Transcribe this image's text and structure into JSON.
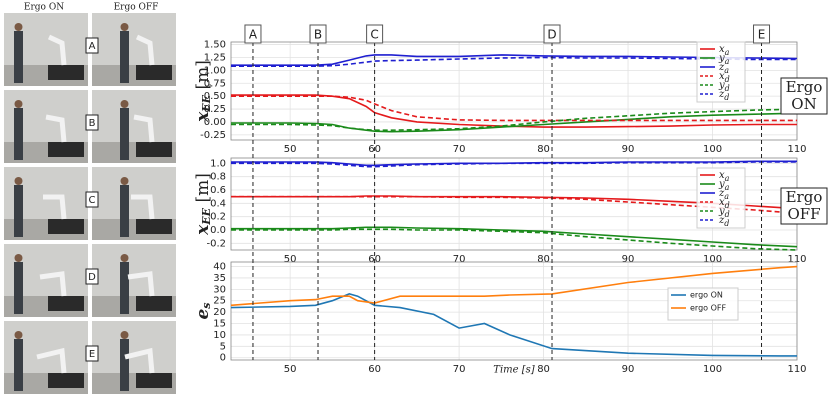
{
  "photos": {
    "headers": [
      "Ergo ON",
      "Ergo OFF"
    ]
  },
  "events": {
    "labels": [
      "A",
      "B",
      "C",
      "D",
      "E"
    ],
    "x": [
      45.6,
      53.3,
      60,
      81,
      105.8
    ]
  },
  "chart_data": [
    {
      "type": "line",
      "ylabel": "xEE [m]",
      "annotation": [
        "Ergo",
        "ON"
      ],
      "x": [
        43,
        50,
        53,
        55,
        57,
        59,
        60,
        62,
        65,
        70,
        75,
        80,
        85,
        90,
        95,
        100,
        105,
        110
      ],
      "xlim": [
        43,
        110
      ],
      "xticks": [
        50,
        60,
        70,
        80,
        90,
        100,
        110
      ],
      "ylim": [
        -0.35,
        1.55
      ],
      "yticks": [
        {
          "value": -0.25,
          "label": "-0.25"
        },
        {
          "value": 0,
          "label": "0.00"
        },
        {
          "value": 0.25,
          "label": "0.25"
        },
        {
          "value": 0.5,
          "label": "0.50"
        },
        {
          "value": 0.75,
          "label": "0.75"
        },
        {
          "value": 1,
          "label": "1.00"
        },
        {
          "value": 1.25,
          "label": "1.25"
        },
        {
          "value": 1.5,
          "label": "1.50"
        }
      ],
      "grid": true,
      "series": [
        {
          "name": "xa",
          "color": "#e41a1c",
          "dash": false,
          "values": [
            0.52,
            0.52,
            0.52,
            0.5,
            0.45,
            0.3,
            0.18,
            0.08,
            0,
            -0.05,
            -0.08,
            -0.1,
            -0.1,
            -0.09,
            -0.08,
            -0.06,
            -0.05,
            -0.05
          ]
        },
        {
          "name": "ya",
          "color": "#1a8a1a",
          "dash": false,
          "values": [
            -0.02,
            -0.02,
            -0.03,
            -0.05,
            -0.12,
            -0.16,
            -0.18,
            -0.19,
            -0.18,
            -0.15,
            -0.1,
            -0.05,
            0,
            0.05,
            0.1,
            0.13,
            0.15,
            0.17
          ]
        },
        {
          "name": "za",
          "color": "#1f1fd0",
          "dash": false,
          "values": [
            1.1,
            1.1,
            1.1,
            1.12,
            1.2,
            1.28,
            1.3,
            1.3,
            1.27,
            1.27,
            1.3,
            1.28,
            1.27,
            1.27,
            1.26,
            1.25,
            1.24,
            1.23
          ]
        },
        {
          "name": "xd",
          "color": "#e41a1c",
          "dash": true,
          "values": [
            0.5,
            0.5,
            0.5,
            0.5,
            0.48,
            0.42,
            0.35,
            0.22,
            0.1,
            0.04,
            0.03,
            0.03,
            0.03,
            0.03,
            0.03,
            0.03,
            0.03,
            0.03
          ]
        },
        {
          "name": "yd",
          "color": "#1a8a1a",
          "dash": true,
          "values": [
            -0.05,
            -0.05,
            -0.06,
            -0.07,
            -0.12,
            -0.15,
            -0.16,
            -0.16,
            -0.15,
            -0.13,
            -0.08,
            0,
            0.07,
            0.12,
            0.17,
            0.2,
            0.23,
            0.25
          ]
        },
        {
          "name": "zd",
          "color": "#1f1fd0",
          "dash": true,
          "values": [
            1.08,
            1.08,
            1.08,
            1.09,
            1.12,
            1.16,
            1.18,
            1.19,
            1.2,
            1.22,
            1.24,
            1.25,
            1.24,
            1.24,
            1.23,
            1.22,
            1.21,
            1.21
          ]
        }
      ]
    },
    {
      "type": "line",
      "ylabel": "xEE [m]",
      "annotation": [
        "Ergo",
        "OFF"
      ],
      "x": [
        43,
        50,
        53,
        55,
        57,
        59,
        60,
        62,
        65,
        70,
        75,
        80,
        85,
        90,
        95,
        100,
        105,
        110
      ],
      "xlim": [
        43,
        110
      ],
      "xticks": [
        50,
        60,
        70,
        80,
        90,
        100,
        110
      ],
      "ylim": [
        -0.3,
        1.08
      ],
      "yticks": [
        {
          "value": -0.2,
          "label": "-0.2"
        },
        {
          "value": 0,
          "label": "0.0"
        },
        {
          "value": 0.2,
          "label": "0.2"
        },
        {
          "value": 0.4,
          "label": "0.4"
        },
        {
          "value": 0.6,
          "label": "0.6"
        },
        {
          "value": 0.8,
          "label": "0.8"
        },
        {
          "value": 1,
          "label": "1.0"
        }
      ],
      "grid": true,
      "series": [
        {
          "name": "xa",
          "color": "#e41a1c",
          "dash": false,
          "values": [
            0.5,
            0.5,
            0.5,
            0.5,
            0.5,
            0.51,
            0.51,
            0.51,
            0.5,
            0.5,
            0.5,
            0.49,
            0.48,
            0.46,
            0.43,
            0.4,
            0.36,
            0.32
          ]
        },
        {
          "name": "ya",
          "color": "#1a8a1a",
          "dash": false,
          "values": [
            0.02,
            0.02,
            0.02,
            0.02,
            0.03,
            0.04,
            0.04,
            0.04,
            0.03,
            0.02,
            0,
            -0.02,
            -0.06,
            -0.1,
            -0.14,
            -0.18,
            -0.22,
            -0.25
          ]
        },
        {
          "name": "za",
          "color": "#1f1fd0",
          "dash": false,
          "values": [
            1.02,
            1.02,
            1.02,
            1.01,
            0.99,
            0.97,
            0.97,
            0.98,
            0.99,
            1,
            1,
            1.01,
            1.01,
            1.02,
            1.02,
            1.02,
            1.03,
            1.03
          ]
        },
        {
          "name": "xd",
          "color": "#e41a1c",
          "dash": true,
          "values": [
            0.5,
            0.5,
            0.5,
            0.5,
            0.5,
            0.5,
            0.5,
            0.5,
            0.5,
            0.49,
            0.49,
            0.48,
            0.46,
            0.42,
            0.38,
            0.34,
            0.3,
            0.25
          ]
        },
        {
          "name": "yd",
          "color": "#1a8a1a",
          "dash": true,
          "values": [
            0,
            0,
            0,
            0,
            0.01,
            0.01,
            0.01,
            0.01,
            0,
            0,
            -0.02,
            -0.04,
            -0.1,
            -0.15,
            -0.2,
            -0.24,
            -0.28,
            -0.3
          ]
        },
        {
          "name": "zd",
          "color": "#1f1fd0",
          "dash": true,
          "values": [
            1,
            1,
            1,
            0.99,
            0.97,
            0.95,
            0.95,
            0.96,
            0.98,
            0.99,
            1,
            1,
            1,
            1.01,
            1.01,
            1.01,
            1.02,
            1.02
          ]
        }
      ]
    },
    {
      "type": "line",
      "ylabel": "es",
      "xlabel": "Time [s]",
      "x": [
        43,
        50,
        53,
        55,
        57,
        58,
        60,
        63,
        67,
        70,
        73,
        76,
        81,
        90,
        100,
        108,
        110
      ],
      "xlim": [
        43,
        110
      ],
      "xticks": [
        50,
        60,
        70,
        80,
        90,
        100,
        110
      ],
      "ylim": [
        -1,
        42
      ],
      "yticks": [
        0,
        5,
        10,
        15,
        20,
        25,
        30,
        35,
        40
      ],
      "grid": true,
      "series": [
        {
          "name": "ergo ON",
          "color": "#1f77b4",
          "dash": false,
          "values": [
            22,
            22.5,
            23,
            25,
            28,
            27,
            23,
            22,
            19,
            13,
            15,
            10,
            4,
            2,
            1,
            0.8,
            0.8
          ]
        },
        {
          "name": "ergo OFF",
          "color": "#ff7f0e",
          "dash": false,
          "values": [
            23,
            25,
            25.5,
            27,
            27,
            25,
            24,
            27,
            27,
            27,
            27,
            27.5,
            28,
            33,
            37,
            39.5,
            40
          ]
        }
      ]
    }
  ]
}
